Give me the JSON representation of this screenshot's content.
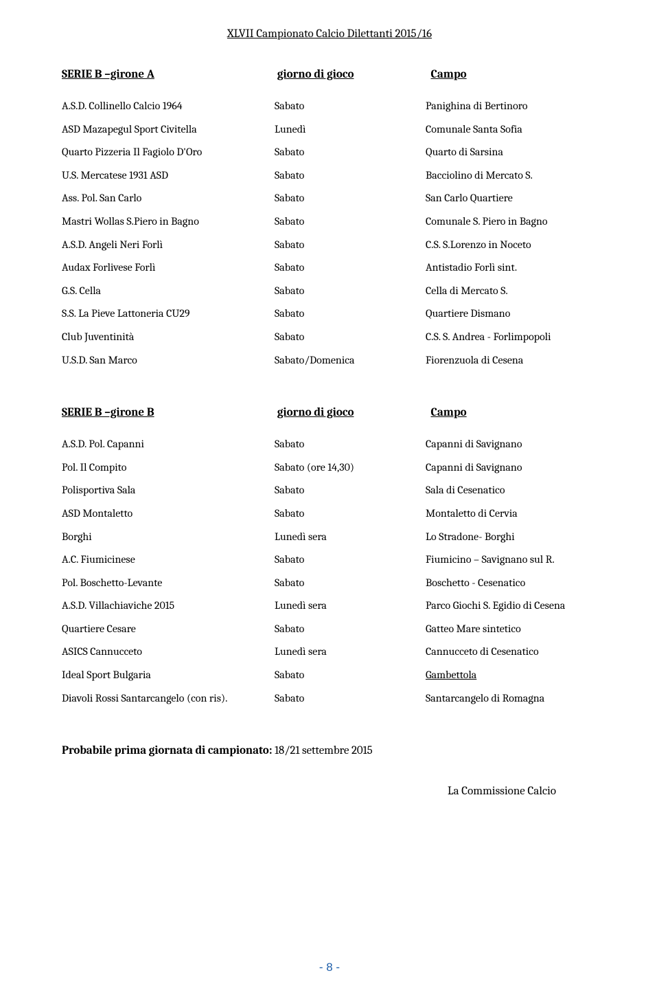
{
  "header": "XLVII Campionato Calcio Dilettanti 2015/16",
  "sectionA": {
    "title_col1": "SERIE B –girone A",
    "title_col2": "giorno di gioco",
    "title_col3": "Campo",
    "rows": [
      {
        "c1": "A.S.D. Collinello Calcio 1964",
        "c2": "Sabato",
        "c3": "Panighina di Bertinoro"
      },
      {
        "c1": "ASD Mazapegul Sport Civitella",
        "c2": "Lunedì",
        "c3": "Comunale Santa Sofia"
      },
      {
        "c1": "Quarto Pizzeria Il Fagiolo D'Oro",
        "c2": "Sabato",
        "c3": "Quarto di Sarsina"
      },
      {
        "c1": "U.S. Mercatese 1931 ASD",
        "c2": "Sabato",
        "c3": "Bacciolino di Mercato S."
      },
      {
        "c1": "Ass. Pol. San Carlo",
        "c2": "Sabato",
        "c3": "San Carlo Quartiere"
      },
      {
        "c1": "Mastri Wollas S.Piero in Bagno",
        "c2": "Sabato",
        "c3": "Comunale S. Piero in Bagno"
      },
      {
        "c1": "A.S.D. Angeli Neri Forlì",
        "c2": "Sabato",
        "c3": "C.S. S.Lorenzo in Noceto"
      },
      {
        "c1": "Audax Forlivese Forlì",
        "c2": "Sabato",
        "c3": "Antistadio Forlì sint."
      },
      {
        "c1": "G.S. Cella",
        "c2": "Sabato",
        "c3": "Cella di Mercato S."
      },
      {
        "c1": "S.S. La Pieve Lattoneria CU29",
        "c2": "Sabato",
        "c3": "Quartiere Dismano"
      },
      {
        "c1": "Club Juventinità",
        "c2": "Sabato",
        "c3": "C.S. S. Andrea - Forlimpopoli"
      },
      {
        "c1": "U.S.D. San Marco",
        "c2": "Sabato/Domenica",
        "c3": "Fiorenzuola di Cesena"
      }
    ]
  },
  "sectionB": {
    "title_col1": "SERIE B –girone B",
    "title_col2": "giorno di gioco",
    "title_col3": "Campo",
    "rows": [
      {
        "c1": "A.S.D. Pol. Capanni",
        "c2": "Sabato",
        "c3": "Capanni di Savignano"
      },
      {
        "c1": "Pol. Il Compito",
        "c2": "Sabato (ore 14,30)",
        "c3": "Capanni di Savignano"
      },
      {
        "c1": "Polisportiva Sala",
        "c2": "Sabato",
        "c3": "Sala di Cesenatico"
      },
      {
        "c1": "ASD Montaletto",
        "c2": "Sabato",
        "c3": "Montaletto di Cervia"
      },
      {
        "c1": "Borghi",
        "c2": "Lunedì sera",
        "c3": "Lo Stradone- Borghi"
      },
      {
        "c1": "A.C. Fiumicinese",
        "c2": "Sabato",
        "c3": "Fiumicino – Savignano sul R."
      },
      {
        "c1": "Pol. Boschetto-Levante",
        "c2": "Sabato",
        "c3": "Boschetto - Cesenatico"
      },
      {
        "c1": "A.S.D. Villachiaviche 2015",
        "c2": "Lunedì sera",
        "c3": "Parco Giochi S. Egidio di Cesena"
      },
      {
        "c1": "Quartiere Cesare",
        "c2": "Sabato",
        "c3": "Gatteo Mare sintetico"
      },
      {
        "c1": "ASICS Cannucceto",
        "c2": "Lunedì sera",
        "c3": "Cannucceto di Cesenatico"
      },
      {
        "c1": "Ideal Sport Bulgaria",
        "c2": "Sabato",
        "c3": "Gambettola",
        "c3_underline": true
      },
      {
        "c1": "Diavoli Rossi Santarcangelo     (con ris).",
        "c2": "Sabato",
        "c3": "Santarcangelo di Romagna"
      }
    ]
  },
  "footer": {
    "bold_part": "Probabile prima giornata di campionato:",
    "rest": " 18/21 settembre 2015"
  },
  "signature": "La Commissione Calcio",
  "page_number": "- 8 -",
  "colors": {
    "text": "#000000",
    "page_number": "#1f5faa",
    "background": "#ffffff"
  }
}
